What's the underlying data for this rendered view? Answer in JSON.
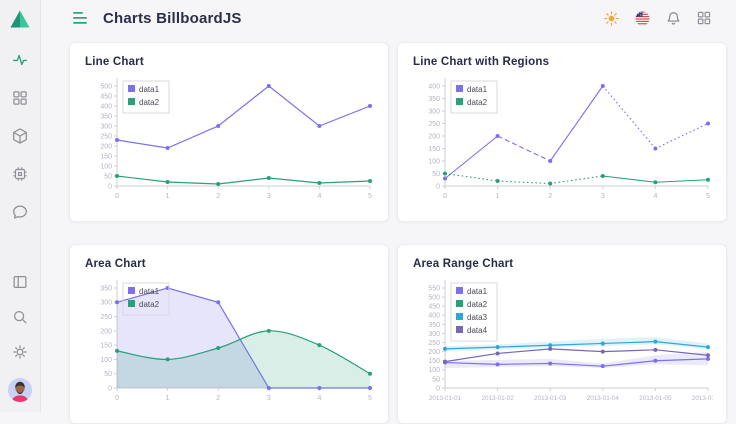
{
  "header": {
    "title": "Charts BillboardJS",
    "menu_icon": "hamburger-menu-icon",
    "action_icons": [
      "theme-sun-icon",
      "language-us-flag-icon",
      "notifications-bell-icon",
      "apps-grid-icon"
    ]
  },
  "sidebar": {
    "logo_icon": "triangle-logo",
    "nav_icons": [
      "activity-icon",
      "dashboard-grid-icon",
      "cube-icon",
      "cpu-icon",
      "chat-bubble-icon"
    ],
    "active_nav": "activity-icon",
    "bottom_icons": [
      "layout-panel-icon",
      "search-icon",
      "gear-icon"
    ],
    "avatar": "user-avatar"
  },
  "colors": {
    "accent_green": "#2aa57e",
    "series_purple": "#7b70f0",
    "series_green": "#26a17b",
    "series_blue": "#2ea6dd",
    "series_violet": "#7668b2",
    "title_text": "#2b3048",
    "axis_line": "#cfcfd6",
    "tick_text": "#b2b4c4"
  },
  "chart_data": [
    {
      "type": "line",
      "title": "Line Chart",
      "x_tick_labels": [
        "0",
        "1",
        "2",
        "3",
        "4",
        "5"
      ],
      "y_ticks": [
        0,
        50,
        100,
        150,
        200,
        250,
        300,
        350,
        400,
        450,
        500
      ],
      "ylim": [
        0,
        500
      ],
      "legend_position": "inset-top-left",
      "series": [
        {
          "name": "data1",
          "type": "line",
          "color": "#7b70f0",
          "values": [
            230,
            190,
            300,
            500,
            300,
            400
          ]
        },
        {
          "name": "data2",
          "type": "line",
          "color": "#26a17b",
          "values": [
            50,
            20,
            10,
            40,
            15,
            25
          ]
        }
      ]
    },
    {
      "type": "line",
      "title": "Line Chart with Regions",
      "x_tick_labels": [
        "0",
        "1",
        "2",
        "3",
        "4",
        "5"
      ],
      "y_ticks": [
        0,
        50,
        100,
        150,
        200,
        250,
        300,
        350,
        400
      ],
      "ylim": [
        0,
        400
      ],
      "legend_position": "inset-top-left",
      "series": [
        {
          "name": "data1",
          "type": "line",
          "color": "#7b70f0",
          "values": [
            30,
            200,
            100,
            400,
            150,
            250
          ],
          "segment_styles": [
            "solid",
            "dashed",
            "solid",
            "dotted",
            "dotted"
          ]
        },
        {
          "name": "data2",
          "type": "line",
          "color": "#26a17b",
          "values": [
            50,
            20,
            10,
            40,
            15,
            25
          ],
          "segment_styles": [
            "dotted",
            "dotted",
            "dotted",
            "solid",
            "solid"
          ]
        }
      ]
    },
    {
      "type": "area",
      "title": "Area Chart",
      "x_tick_labels": [
        "0",
        "1",
        "2",
        "3",
        "4",
        "5"
      ],
      "y_ticks": [
        0,
        50,
        100,
        150,
        200,
        250,
        300,
        350
      ],
      "ylim": [
        0,
        350
      ],
      "legend_position": "inset-top-left",
      "series": [
        {
          "name": "data1",
          "type": "area",
          "color": "#7b70f0",
          "values": [
            300,
            350,
            300,
            0,
            0,
            0
          ]
        },
        {
          "name": "data2",
          "type": "area-spline",
          "color": "#26a17b",
          "values": [
            130,
            100,
            140,
            200,
            150,
            50
          ]
        }
      ]
    },
    {
      "type": "area",
      "title": "Area Range Chart",
      "x_tick_labels": [
        "2013-01-01",
        "2013-01-02",
        "2013-01-03",
        "2013-01-04",
        "2013-01-05",
        "2013-01-06"
      ],
      "y_ticks": [
        0,
        50,
        100,
        150,
        200,
        250,
        300,
        350,
        400,
        450,
        500,
        550
      ],
      "ylim": [
        0,
        550
      ],
      "legend_position": "inset-top-left",
      "series": [
        {
          "name": "data1",
          "type": "area-line-range",
          "color": "#7b70f0",
          "values": [
            140,
            130,
            135,
            120,
            150,
            160
          ],
          "high": [
            150,
            155,
            160,
            135,
            180,
            199
          ],
          "low": [
            110,
            115,
            120,
            110,
            130,
            125
          ]
        },
        {
          "name": "data2",
          "type": "line",
          "color": "#26a17b",
          "values": null,
          "hidden": true
        },
        {
          "name": "data3",
          "type": "area-line-range",
          "color": "#2ea6dd",
          "values": [
            215,
            225,
            235,
            245,
            255,
            225
          ],
          "high": [
            230,
            240,
            255,
            270,
            280,
            245
          ],
          "low": [
            200,
            210,
            225,
            230,
            240,
            215
          ]
        },
        {
          "name": "data4",
          "type": "line",
          "color": "#7668b2",
          "values": [
            145,
            190,
            215,
            200,
            210,
            180
          ]
        }
      ]
    }
  ]
}
